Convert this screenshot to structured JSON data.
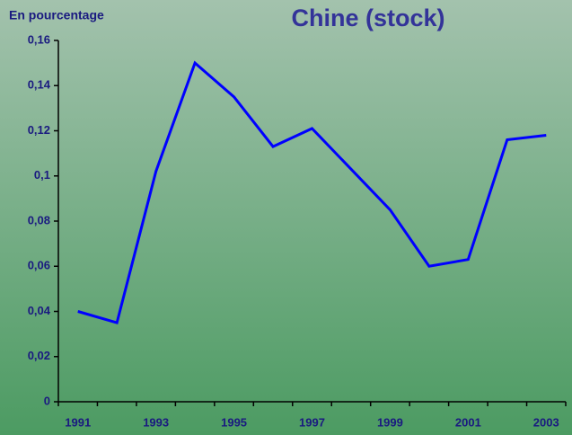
{
  "chart_data": {
    "type": "line",
    "title": "Chine (stock)",
    "ylabel": "En pourcentage",
    "categories": [
      "1991",
      null,
      "1993",
      null,
      "1995",
      null,
      "1997",
      null,
      "1999",
      null,
      "2001",
      null,
      "2003"
    ],
    "series": [
      {
        "name": "Chine (stock)",
        "color": "#0000ff",
        "values": [
          0.04,
          0.035,
          0.102,
          0.15,
          0.135,
          0.113,
          0.121,
          0.103,
          0.085,
          0.06,
          0.063,
          0.116,
          0.118
        ]
      }
    ],
    "ylim": [
      0,
      0.16
    ],
    "yticks": [
      0,
      {
        "value": 0.02,
        "label": "0,02"
      },
      {
        "value": 0.04,
        "label": "0,04"
      },
      {
        "value": 0.06,
        "label": "0,06"
      },
      {
        "value": 0.08,
        "label": "0,08"
      },
      {
        "value": 0.1,
        "label": "0,1"
      },
      {
        "value": 0.12,
        "label": "0,12"
      },
      {
        "value": 0.14,
        "label": "0,14"
      },
      {
        "value": 0.16,
        "label": "0,16"
      }
    ],
    "grid": false
  }
}
